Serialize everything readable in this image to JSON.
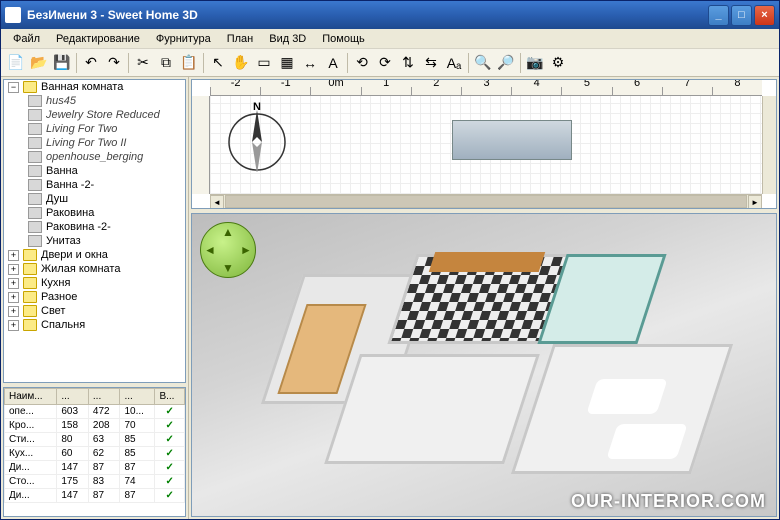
{
  "window": {
    "title": "БезИмени 3 - Sweet Home 3D",
    "minimize": "_",
    "maximize": "□",
    "close": "×"
  },
  "menu": {
    "file": "Файл",
    "edit": "Редактирование",
    "furniture": "Фурнитура",
    "plan": "План",
    "view3d": "Вид 3D",
    "help": "Помощь"
  },
  "toolbar_icons": {
    "new": "📄",
    "open": "📂",
    "save": "💾",
    "undo": "↶",
    "redo": "↷",
    "cut": "✂",
    "copy": "⧉",
    "paste": "📋",
    "select": "↖",
    "pan": "✋",
    "wall": "▭",
    "room": "▦",
    "dim": "↔",
    "text": "A",
    "rotl": "⟲",
    "rotr": "⟳",
    "flipv": "⇅",
    "fliph": "⇆",
    "aa": "Aₐ",
    "zoomin": "🔍",
    "zoomout": "🔎",
    "snap": "📷",
    "pref": "⚙"
  },
  "tree": {
    "root": "Ванная комната",
    "items": [
      "hus45",
      "Jewelry Store Reduced",
      "Living For Two",
      "Living For Two II",
      "openhouse_berging"
    ],
    "subitems": [
      "Ванна",
      "Ванна -2-",
      "Душ",
      "Раковина",
      "Раковина -2-",
      "Унитаз"
    ],
    "cats": [
      "Двери и окна",
      "Жилая комната",
      "Кухня",
      "Разное",
      "Свет",
      "Спальня"
    ]
  },
  "table": {
    "headers": {
      "name": "Наим...",
      "w": "...",
      "d": "...",
      "h": "...",
      "v": "В..."
    },
    "rows": [
      {
        "n": "опе...",
        "w": "603",
        "d": "472",
        "h": "10..."
      },
      {
        "n": "Кро...",
        "w": "158",
        "d": "208",
        "h": "70"
      },
      {
        "n": "Сти...",
        "w": "80",
        "d": "63",
        "h": "85"
      },
      {
        "n": "Кух...",
        "w": "60",
        "d": "62",
        "h": "85"
      },
      {
        "n": "Ди...",
        "w": "147",
        "d": "87",
        "h": "87"
      },
      {
        "n": "Сто...",
        "w": "175",
        "d": "83",
        "h": "74"
      },
      {
        "n": "Ди...",
        "w": "147",
        "d": "87",
        "h": "87"
      }
    ]
  },
  "ruler": {
    "labels": [
      "-2",
      "-1",
      "0m",
      "1",
      "2",
      "3",
      "4",
      "5",
      "6",
      "7",
      "8"
    ]
  },
  "compass_label": "N",
  "colors": {
    "titlebar": "#2a5fb1",
    "bg": "#ece9d8",
    "accent_green": "#7eb53b",
    "wood": "#c5853e",
    "dark_wood": "#6b4226",
    "tile": "#e5e5e5",
    "teal_wall": "#5a9b94"
  },
  "watermark": "OUR-INTERIOR.COM"
}
